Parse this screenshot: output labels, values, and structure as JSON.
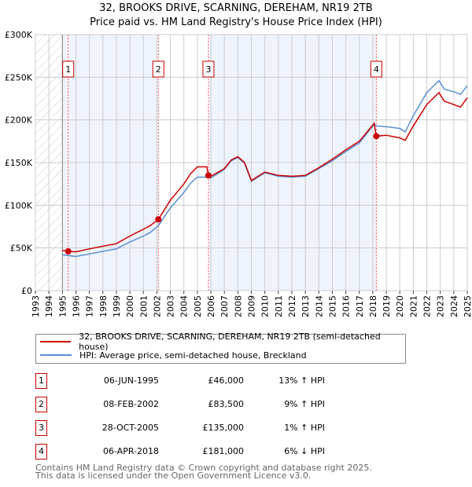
{
  "title_line1": "32, BROOKS DRIVE, SCARNING, DEREHAM, NR19 2TB",
  "title_line2": "Price paid vs. HM Land Registry's House Price Index (HPI)",
  "chart_data": {
    "type": "line",
    "title": "32, BROOKS DRIVE, SCARNING, DEREHAM, NR19 2TB - Price paid vs. HM Land Registry's House Price Index (HPI)",
    "xlim": [
      1993,
      2025
    ],
    "ylim": [
      0,
      300000
    ],
    "x_ticks": [
      "1993",
      "1994",
      "1995",
      "1996",
      "1997",
      "1998",
      "1999",
      "2000",
      "2001",
      "2002",
      "2003",
      "2004",
      "2005",
      "2006",
      "2007",
      "2008",
      "2009",
      "2010",
      "2011",
      "2012",
      "2013",
      "2014",
      "2015",
      "2016",
      "2017",
      "2018",
      "2019",
      "2020",
      "2021",
      "2022",
      "2023",
      "2024",
      "2025"
    ],
    "y_ticks": [
      {
        "v": 0,
        "label": "£0"
      },
      {
        "v": 50000,
        "label": "£50K"
      },
      {
        "v": 100000,
        "label": "£100K"
      },
      {
        "v": 150000,
        "label": "£150K"
      },
      {
        "v": 200000,
        "label": "£200K"
      },
      {
        "v": 250000,
        "label": "£250K"
      },
      {
        "v": 300000,
        "label": "£300K"
      }
    ],
    "grid": true,
    "colors": {
      "property": "#cc0000",
      "hpi": "#5b8fd0",
      "shade": "#eef3fc"
    },
    "series": [
      {
        "name": "32, BROOKS DRIVE, SCARNING, DEREHAM, NR19 2TB (semi-detached house)",
        "key": "property",
        "points": [
          [
            1995.0,
            47000
          ],
          [
            1995.43,
            46000
          ],
          [
            1996.0,
            45500
          ],
          [
            1997.0,
            49000
          ],
          [
            1998.0,
            52000
          ],
          [
            1999.0,
            55000
          ],
          [
            2000.0,
            64000
          ],
          [
            2001.0,
            72000
          ],
          [
            2001.5,
            76000
          ],
          [
            2002.11,
            83500
          ],
          [
            2003.0,
            106000
          ],
          [
            2004.0,
            125000
          ],
          [
            2004.5,
            137000
          ],
          [
            2005.0,
            145000
          ],
          [
            2005.7,
            145000
          ],
          [
            2005.82,
            135000
          ],
          [
            2006.0,
            134000
          ],
          [
            2007.0,
            143000
          ],
          [
            2007.5,
            153000
          ],
          [
            2008.0,
            157000
          ],
          [
            2008.5,
            150000
          ],
          [
            2009.0,
            129000
          ],
          [
            2010.0,
            139000
          ],
          [
            2011.0,
            135000
          ],
          [
            2012.0,
            134000
          ],
          [
            2013.0,
            135000
          ],
          [
            2014.0,
            144000
          ],
          [
            2015.0,
            154000
          ],
          [
            2016.0,
            165000
          ],
          [
            2017.0,
            175000
          ],
          [
            2018.1,
            196000
          ],
          [
            2018.26,
            181000
          ],
          [
            2019.0,
            182000
          ],
          [
            2020.0,
            179000
          ],
          [
            2020.4,
            176000
          ],
          [
            2021.0,
            193000
          ],
          [
            2022.0,
            218000
          ],
          [
            2022.9,
            232000
          ],
          [
            2023.3,
            222000
          ],
          [
            2024.0,
            218000
          ],
          [
            2024.5,
            215000
          ],
          [
            2025.0,
            226000
          ]
        ]
      },
      {
        "name": "HPI: Average price, semi-detached house, Breckland",
        "key": "hpi",
        "points": [
          [
            1995.0,
            42000
          ],
          [
            1995.43,
            41000
          ],
          [
            1996.0,
            40000
          ],
          [
            1997.0,
            43000
          ],
          [
            1998.0,
            46000
          ],
          [
            1999.0,
            49000
          ],
          [
            2000.0,
            57000
          ],
          [
            2001.0,
            64000
          ],
          [
            2001.5,
            68000
          ],
          [
            2002.11,
            76000
          ],
          [
            2003.0,
            97000
          ],
          [
            2004.0,
            115000
          ],
          [
            2004.5,
            126000
          ],
          [
            2005.0,
            133000
          ],
          [
            2005.82,
            133000
          ],
          [
            2006.0,
            132000
          ],
          [
            2007.0,
            142000
          ],
          [
            2007.5,
            152000
          ],
          [
            2008.0,
            156000
          ],
          [
            2008.5,
            149000
          ],
          [
            2009.0,
            128000
          ],
          [
            2010.0,
            138000
          ],
          [
            2011.0,
            134000
          ],
          [
            2012.0,
            133000
          ],
          [
            2013.0,
            134000
          ],
          [
            2014.0,
            143000
          ],
          [
            2015.0,
            152000
          ],
          [
            2016.0,
            163000
          ],
          [
            2017.0,
            173000
          ],
          [
            2018.1,
            195000
          ],
          [
            2018.26,
            193000
          ],
          [
            2019.0,
            192000
          ],
          [
            2020.0,
            190000
          ],
          [
            2020.4,
            186000
          ],
          [
            2021.0,
            205000
          ],
          [
            2022.0,
            232000
          ],
          [
            2022.9,
            246000
          ],
          [
            2023.3,
            236000
          ],
          [
            2024.0,
            233000
          ],
          [
            2024.5,
            230000
          ],
          [
            2025.0,
            240000
          ]
        ]
      }
    ],
    "sales": [
      {
        "id": "1",
        "x": 1995.43,
        "price": 46000
      },
      {
        "id": "2",
        "x": 2002.11,
        "price": 83500
      },
      {
        "id": "3",
        "x": 2005.82,
        "price": 135000
      },
      {
        "id": "4",
        "x": 2018.26,
        "price": 181000
      }
    ],
    "hatched_before": 1995.0
  },
  "legend": {
    "property": "32, BROOKS DRIVE, SCARNING, DEREHAM, NR19 2TB (semi-detached house)",
    "hpi": "HPI: Average price, semi-detached house, Breckland"
  },
  "transactions": [
    {
      "num": "1",
      "date": "06-JUN-1995",
      "price": "£46,000",
      "hpi": "13% ↑ HPI"
    },
    {
      "num": "2",
      "date": "08-FEB-2002",
      "price": "£83,500",
      "hpi": "9% ↑ HPI"
    },
    {
      "num": "3",
      "date": "28-OCT-2005",
      "price": "£135,000",
      "hpi": "1% ↑ HPI"
    },
    {
      "num": "4",
      "date": "06-APR-2018",
      "price": "£181,000",
      "hpi": "6% ↓ HPI"
    }
  ],
  "footer": {
    "line1": "Contains HM Land Registry data © Crown copyright and database right 2025.",
    "line2": "This data is licensed under the Open Government Licence v3.0."
  }
}
